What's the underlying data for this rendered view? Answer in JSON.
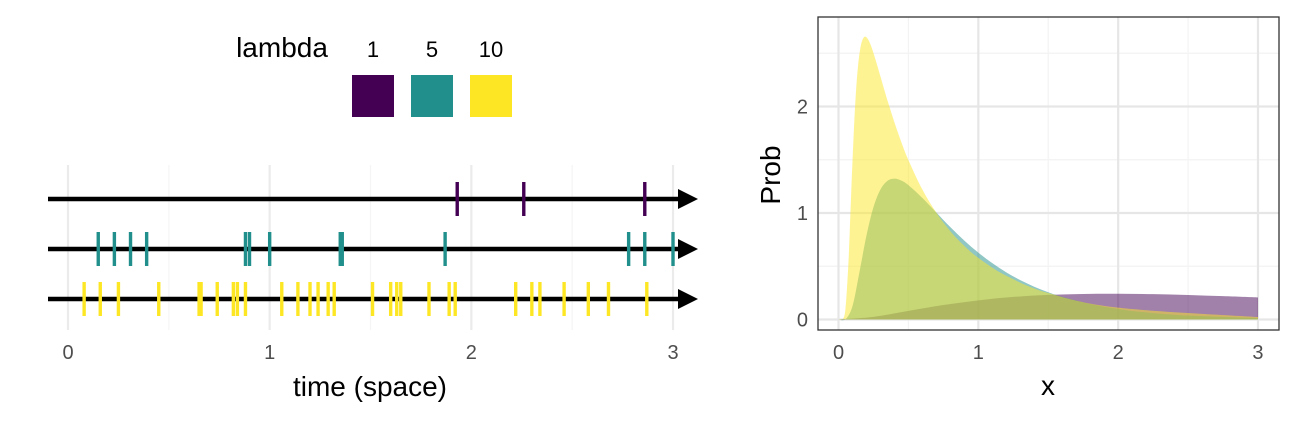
{
  "legend": {
    "title": "lambda",
    "entries": [
      {
        "label": "1",
        "color": "#440154"
      },
      {
        "label": "5",
        "color": "#21908C"
      },
      {
        "label": "10",
        "color": "#FDE725"
      }
    ]
  },
  "chart_data": [
    {
      "type": "scatter",
      "xlabel": "time (space)",
      "x_ticks": [
        "0",
        "1",
        "2",
        "3"
      ],
      "xlim": [
        -0.1,
        3.1
      ],
      "grid": true,
      "legend_placement": "top",
      "series": [
        {
          "lambda": "1",
          "color": "#440154",
          "events": [
            1.93,
            2.26,
            2.86
          ]
        },
        {
          "lambda": "5",
          "color": "#21908C",
          "events": [
            0.15,
            0.23,
            0.31,
            0.39,
            0.88,
            0.9,
            1.0,
            1.35,
            1.36,
            1.87,
            2.78,
            2.86,
            3.0
          ]
        },
        {
          "lambda": "10",
          "color": "#FDE725",
          "events": [
            0.08,
            0.16,
            0.25,
            0.45,
            0.65,
            0.66,
            0.74,
            0.82,
            0.84,
            0.88,
            1.06,
            1.14,
            1.2,
            1.24,
            1.29,
            1.32,
            1.51,
            1.6,
            1.63,
            1.65,
            1.79,
            1.89,
            1.92,
            2.22,
            2.3,
            2.34,
            2.46,
            2.58,
            2.68,
            2.87
          ]
        }
      ]
    },
    {
      "type": "area",
      "xlabel": "x",
      "ylabel": "Prob",
      "x_ticks": [
        "0",
        "1",
        "2",
        "3"
      ],
      "y_ticks": [
        "0",
        "1",
        "2"
      ],
      "xlim": [
        -0.1,
        3.15
      ],
      "ylim": [
        -0.02,
        2.82
      ],
      "grid": true,
      "fill_opacity": 0.5,
      "series": [
        {
          "lambda": "1",
          "color": "#440154",
          "x": [
            0.0,
            0.25,
            0.5,
            0.75,
            1.0,
            1.25,
            1.5,
            1.75,
            2.0,
            2.25,
            2.5,
            2.75,
            3.0
          ],
          "y": [
            0.0,
            0.025,
            0.081,
            0.136,
            0.18,
            0.212,
            0.231,
            0.24,
            0.242,
            0.238,
            0.23,
            0.219,
            0.207
          ]
        },
        {
          "lambda": "5",
          "color": "#21908C",
          "x": [
            0.0,
            0.05,
            0.1,
            0.15,
            0.2,
            0.25,
            0.3,
            0.35,
            0.4,
            0.45,
            0.5,
            0.6,
            0.7,
            0.8,
            0.9,
            1.0,
            1.1,
            1.2,
            1.3,
            1.4,
            1.5,
            1.6,
            1.8,
            2.0,
            2.2,
            2.5,
            3.0
          ],
          "y": [
            0.0,
            0.003,
            0.126,
            0.446,
            0.789,
            1.055,
            1.221,
            1.302,
            1.323,
            1.304,
            1.262,
            1.141,
            1.004,
            0.867,
            0.741,
            0.628,
            0.529,
            0.443,
            0.37,
            0.308,
            0.256,
            0.212,
            0.146,
            0.099,
            0.067,
            0.037,
            0.013
          ]
        },
        {
          "lambda": "10",
          "color": "#FDE725",
          "x": [
            0.0,
            0.03,
            0.05,
            0.07,
            0.08,
            0.1,
            0.12,
            0.14,
            0.16,
            0.18,
            0.2,
            0.22,
            0.24,
            0.26,
            0.28,
            0.3,
            0.35,
            0.4,
            0.45,
            0.5,
            0.6,
            0.7,
            0.8,
            0.9,
            1.0,
            1.2,
            1.5,
            2.0,
            3.0
          ],
          "y": [
            0.0,
            0.002,
            0.103,
            0.506,
            0.811,
            1.485,
            2.032,
            2.385,
            2.573,
            2.647,
            2.65,
            2.609,
            2.542,
            2.46,
            2.372,
            2.282,
            2.058,
            1.851,
            1.663,
            1.497,
            1.219,
            1.002,
            0.829,
            0.691,
            0.579,
            0.411,
            0.249,
            0.111,
            0.023
          ]
        }
      ]
    }
  ]
}
